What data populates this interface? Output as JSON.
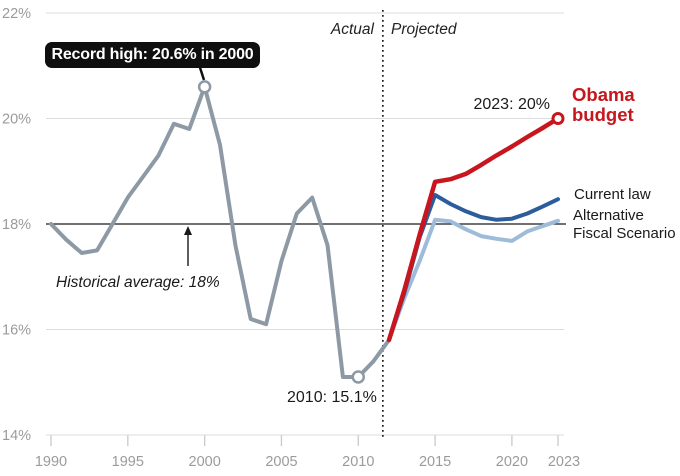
{
  "annotations": {
    "record_high": "Record high: 20.6% in 2000",
    "historical_average": "Historical average: 18%",
    "low_2010": "2010: 15.1%",
    "obama_2023": "2023: 20%",
    "actual": "Actual",
    "projected": "Projected"
  },
  "series_labels": {
    "obama": "Obama budget",
    "current_law": "Current law",
    "afs": "Alternative Fiscal Scenario"
  },
  "colors": {
    "actual_gray": "#8D9AA5",
    "obama_red": "#C7161D",
    "current_law_blue": "#2C5C9C",
    "afs_light_blue": "#9FBBDA",
    "gridline": "#DCDCDC",
    "tick": "#C9C9C9",
    "axis_label": "#9B9B9B",
    "average_line": "#1A1A1A",
    "divider": "#111111",
    "tooltip_bg": "#0F0F0F",
    "tooltip_text": "#FFFFFF"
  },
  "chart_data": {
    "type": "line",
    "ylim": [
      14,
      22
    ],
    "xlim": [
      1990,
      2023
    ],
    "grid": true,
    "legend_position": "right-inline",
    "historical_average_value": 18,
    "divider_year": 2011.6,
    "y_ticks": [
      {
        "label": "22%",
        "value": 22
      },
      {
        "label": "20%",
        "value": 20
      },
      {
        "label": "18%",
        "value": 18
      },
      {
        "label": "16%",
        "value": 16
      },
      {
        "label": "14%",
        "value": 14
      }
    ],
    "x_ticks": [
      {
        "label": "1990",
        "value": 1990
      },
      {
        "label": "1995",
        "value": 1995
      },
      {
        "label": "2000",
        "value": 2000
      },
      {
        "label": "2005",
        "value": 2005
      },
      {
        "label": "2010",
        "value": 2010
      },
      {
        "label": "2015",
        "value": 2015
      },
      {
        "label": "2020",
        "value": 2020
      },
      {
        "label": "2023",
        "value": 2023
      }
    ],
    "series": [
      {
        "name": "Actual",
        "color_key": "actual_gray",
        "width": 4,
        "x": [
          1990,
          1991,
          1992,
          1993,
          1994,
          1995,
          1996,
          1997,
          1998,
          1999,
          2000,
          2001,
          2002,
          2003,
          2004,
          2005,
          2006,
          2007,
          2008,
          2009,
          2010,
          2011,
          2012
        ],
        "values": [
          18.0,
          17.7,
          17.45,
          17.5,
          18.0,
          18.5,
          18.9,
          19.3,
          19.9,
          19.8,
          20.6,
          19.5,
          17.6,
          16.2,
          16.1,
          17.3,
          18.2,
          18.5,
          17.6,
          15.1,
          15.1,
          15.4,
          15.8
        ]
      },
      {
        "name": "Alternative Fiscal Scenario",
        "color_key": "afs_light_blue",
        "width": 4,
        "x": [
          2012,
          2013,
          2014,
          2015,
          2016,
          2017,
          2018,
          2019,
          2020,
          2021,
          2022,
          2023
        ],
        "values": [
          15.8,
          16.6,
          17.3,
          18.08,
          18.05,
          17.9,
          17.77,
          17.72,
          17.68,
          17.86,
          17.96,
          18.06
        ]
      },
      {
        "name": "Current law",
        "color_key": "current_law_blue",
        "width": 4,
        "x": [
          2012,
          2013,
          2014,
          2015,
          2016,
          2017,
          2018,
          2019,
          2020,
          2021,
          2022,
          2023
        ],
        "values": [
          15.8,
          16.7,
          17.75,
          18.55,
          18.38,
          18.24,
          18.13,
          18.08,
          18.1,
          18.2,
          18.33,
          18.47
        ]
      },
      {
        "name": "Obama budget",
        "color_key": "obama_red",
        "width": 4.5,
        "x": [
          2012,
          2013,
          2014,
          2015,
          2016,
          2017,
          2018,
          2019,
          2020,
          2021,
          2022,
          2023
        ],
        "values": [
          15.8,
          16.75,
          17.8,
          18.8,
          18.85,
          18.95,
          19.12,
          19.3,
          19.47,
          19.65,
          19.82,
          20.0
        ]
      }
    ],
    "markers": [
      {
        "year": 2000,
        "value": 20.6,
        "color_key": "actual_gray",
        "r": 5.5,
        "stroke_width": 2.5
      },
      {
        "year": 2010,
        "value": 15.1,
        "color_key": "actual_gray",
        "r": 5.5,
        "stroke_width": 2.5
      },
      {
        "year": 2023,
        "value": 20.0,
        "color_key": "obama_red",
        "r": 5,
        "stroke_width": 3
      }
    ]
  }
}
